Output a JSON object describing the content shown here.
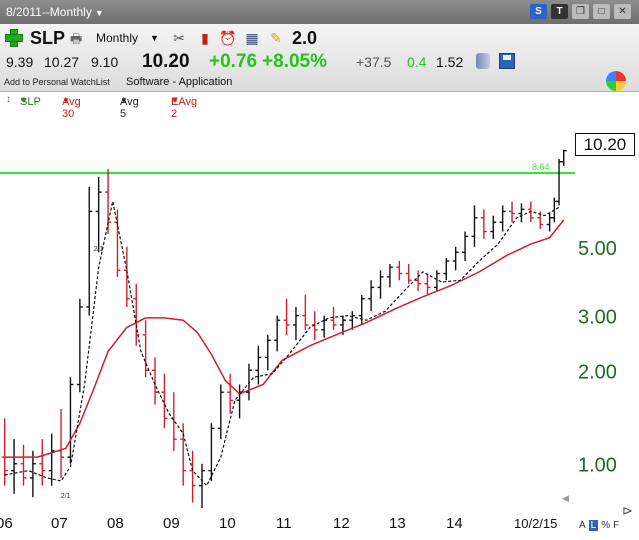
{
  "window": {
    "title": "8/2011--Monthly",
    "icons": [
      "stocktwits-icon",
      "twitter-icon",
      "restore-icon",
      "maximize-icon",
      "close-icon"
    ]
  },
  "toolbar": {
    "symbol": "SLP",
    "period": "Monthly",
    "version": "2.0",
    "icons": [
      "add-watchlist-icon",
      "print-icon",
      "tools-icon",
      "chart-icon",
      "alarm-icon",
      "calculator-icon",
      "note-icon"
    ]
  },
  "quote": {
    "open": "9.39",
    "high": "10.27",
    "low": "9.10",
    "last": "10.20",
    "change": "+0.76",
    "change_pct": "+8.05%",
    "rs": "+37.5",
    "volume_ratio": "0.4",
    "value": "1.52",
    "watchlist_link": "Add to Personal WatchList",
    "industry": "Software - Application"
  },
  "legend": {
    "symbol": "SLP",
    "avg30": "Avg 30",
    "avg5": "Avg 5",
    "eavg2": "EAvg 2"
  },
  "colors": {
    "up_bar": "#111111",
    "down_bar": "#d0202a",
    "avg30": "#d0202a",
    "avg5": "#111111",
    "level_line": "#2ee82e",
    "axis_text": "#1f6e1f",
    "change_green": "#27c21a"
  },
  "chart_data": {
    "type": "line",
    "scale": "log",
    "ylim": [
      0.72,
      14
    ],
    "y_ticks": [
      1.0,
      2.0,
      3.0,
      5.0
    ],
    "y_tick_labels": [
      "1.00",
      "2.00",
      "3.00",
      "5.00"
    ],
    "x_tick_labels": [
      "06",
      "07",
      "08",
      "09",
      "10",
      "11",
      "12",
      "13",
      "14",
      "10/2/15"
    ],
    "horizontal_line": {
      "value": 8.64,
      "label": "8.64"
    },
    "last_price_label": "10.20",
    "annotations": [
      {
        "text": "2/1",
        "x": "2006-12",
        "y": 0.8
      },
      {
        "text": "2/1",
        "x": "2007-07",
        "y": 5.0
      }
    ],
    "series": [
      {
        "name": "Avg 30",
        "x": [
          "2005-11",
          "2006-06",
          "2006-12",
          "2007-03",
          "2007-06",
          "2007-09",
          "2008-01",
          "2008-05",
          "2008-09",
          "2009-01",
          "2009-04",
          "2009-07",
          "2009-10",
          "2010-01",
          "2010-06",
          "2010-10",
          "2011-04",
          "2011-10",
          "2012-04",
          "2012-10",
          "2013-04",
          "2013-10",
          "2014-04",
          "2014-10",
          "2015-03",
          "2015-07",
          "2015-10"
        ],
        "values": [
          1.05,
          1.05,
          1.12,
          1.35,
          1.75,
          2.3,
          2.75,
          2.95,
          2.95,
          2.9,
          2.65,
          2.25,
          1.85,
          1.68,
          1.8,
          2.15,
          2.4,
          2.62,
          2.85,
          3.15,
          3.45,
          3.75,
          4.15,
          4.7,
          5.1,
          5.35,
          6.1
        ]
      },
      {
        "name": "Avg 5",
        "x": [
          "2005-11",
          "2006-04",
          "2006-08",
          "2006-11",
          "2007-01",
          "2007-04",
          "2007-07",
          "2007-10",
          "2008-01",
          "2008-04",
          "2008-07",
          "2008-10",
          "2009-01",
          "2009-03",
          "2009-06",
          "2009-09",
          "2009-12",
          "2010-04",
          "2010-08",
          "2010-12",
          "2011-04",
          "2011-08",
          "2011-12",
          "2012-04",
          "2012-08",
          "2012-12",
          "2013-04",
          "2013-08",
          "2013-12",
          "2014-04",
          "2014-08",
          "2014-12",
          "2015-03",
          "2015-06",
          "2015-09"
        ],
        "values": [
          0.92,
          0.95,
          0.9,
          0.88,
          0.98,
          1.8,
          4.3,
          7.0,
          4.2,
          2.3,
          1.8,
          1.45,
          1.25,
          0.95,
          0.85,
          1.05,
          1.6,
          1.9,
          1.95,
          2.3,
          2.75,
          2.95,
          3.0,
          2.9,
          3.1,
          3.6,
          4.15,
          3.85,
          3.9,
          4.5,
          5.1,
          6.2,
          6.5,
          6.3,
          6.7
        ]
      }
    ],
    "bars_ohlc": {
      "columns": [
        "date",
        "open",
        "high",
        "low",
        "close"
      ],
      "rows": [
        [
          "2005-11",
          1.05,
          1.4,
          0.85,
          0.95
        ],
        [
          "2006-01",
          0.95,
          1.2,
          0.8,
          1.0
        ],
        [
          "2006-03",
          1.0,
          1.15,
          0.85,
          0.9
        ],
        [
          "2006-05",
          0.9,
          1.1,
          0.78,
          1.0
        ],
        [
          "2006-07",
          1.0,
          1.2,
          0.85,
          0.95
        ],
        [
          "2006-09",
          0.95,
          1.25,
          0.85,
          1.1
        ],
        [
          "2006-11",
          1.1,
          1.5,
          0.9,
          1.05
        ],
        [
          "2007-01",
          1.05,
          1.9,
          1.0,
          1.8
        ],
        [
          "2007-03",
          1.8,
          3.4,
          1.7,
          3.2
        ],
        [
          "2007-05",
          3.2,
          7.8,
          3.0,
          6.5
        ],
        [
          "2007-07",
          6.5,
          8.4,
          4.8,
          7.5
        ],
        [
          "2007-09",
          7.5,
          8.9,
          5.5,
          6.0
        ],
        [
          "2007-11",
          6.0,
          6.6,
          4.0,
          4.2
        ],
        [
          "2008-01",
          4.2,
          5.0,
          3.2,
          3.4
        ],
        [
          "2008-03",
          3.4,
          3.8,
          2.4,
          2.6
        ],
        [
          "2008-05",
          2.6,
          2.9,
          1.9,
          2.0
        ],
        [
          "2008-07",
          2.0,
          2.2,
          1.55,
          1.7
        ],
        [
          "2008-09",
          1.7,
          1.95,
          1.3,
          1.4
        ],
        [
          "2008-11",
          1.4,
          1.7,
          1.1,
          1.2
        ],
        [
          "2009-01",
          1.2,
          1.35,
          0.85,
          0.95
        ],
        [
          "2009-03",
          0.95,
          1.1,
          0.75,
          0.85
        ],
        [
          "2009-05",
          0.85,
          1.0,
          0.72,
          0.95
        ],
        [
          "2009-07",
          0.95,
          1.35,
          0.88,
          1.3
        ],
        [
          "2009-09",
          1.3,
          1.8,
          1.2,
          1.7
        ],
        [
          "2009-11",
          1.7,
          1.95,
          1.45,
          1.6
        ],
        [
          "2010-01",
          1.6,
          1.8,
          1.4,
          1.7
        ],
        [
          "2010-03",
          1.7,
          2.1,
          1.6,
          2.0
        ],
        [
          "2010-05",
          2.0,
          2.4,
          1.8,
          2.2
        ],
        [
          "2010-07",
          2.2,
          2.6,
          2.0,
          2.5
        ],
        [
          "2010-09",
          2.5,
          3.0,
          2.3,
          2.9
        ],
        [
          "2010-11",
          2.9,
          3.4,
          2.6,
          2.8
        ],
        [
          "2011-01",
          2.8,
          3.2,
          2.5,
          3.0
        ],
        [
          "2011-03",
          3.0,
          3.5,
          2.7,
          2.8
        ],
        [
          "2011-05",
          2.8,
          3.1,
          2.5,
          2.7
        ],
        [
          "2011-07",
          2.7,
          3.0,
          2.55,
          2.9
        ],
        [
          "2011-09",
          2.9,
          3.2,
          2.7,
          2.8
        ],
        [
          "2011-11",
          2.8,
          3.0,
          2.6,
          2.9
        ],
        [
          "2012-01",
          2.9,
          3.1,
          2.7,
          3.0
        ],
        [
          "2012-03",
          3.0,
          3.5,
          2.8,
          3.4
        ],
        [
          "2012-05",
          3.4,
          3.9,
          3.1,
          3.7
        ],
        [
          "2012-07",
          3.7,
          4.2,
          3.4,
          4.0
        ],
        [
          "2012-09",
          4.0,
          4.4,
          3.7,
          4.3
        ],
        [
          "2012-11",
          4.3,
          4.5,
          3.9,
          4.1
        ],
        [
          "2013-01",
          4.1,
          4.4,
          3.8,
          3.9
        ],
        [
          "2013-03",
          3.9,
          4.2,
          3.6,
          3.8
        ],
        [
          "2013-05",
          3.8,
          4.1,
          3.5,
          3.7
        ],
        [
          "2013-07",
          3.7,
          4.2,
          3.6,
          4.1
        ],
        [
          "2013-09",
          4.1,
          4.6,
          3.9,
          4.5
        ],
        [
          "2013-11",
          4.5,
          5.0,
          4.2,
          4.8
        ],
        [
          "2014-01",
          4.8,
          5.6,
          4.5,
          5.4
        ],
        [
          "2014-03",
          5.4,
          6.8,
          5.0,
          6.2
        ],
        [
          "2014-05",
          6.2,
          6.6,
          5.3,
          5.6
        ],
        [
          "2014-07",
          5.6,
          6.3,
          5.3,
          6.0
        ],
        [
          "2014-09",
          6.0,
          6.8,
          5.6,
          6.5
        ],
        [
          "2014-11",
          6.5,
          7.0,
          6.0,
          6.4
        ],
        [
          "2015-01",
          6.4,
          6.9,
          6.0,
          6.6
        ],
        [
          "2015-03",
          6.6,
          7.0,
          6.0,
          6.2
        ],
        [
          "2015-05",
          6.2,
          6.5,
          5.7,
          5.9
        ],
        [
          "2015-07",
          5.9,
          6.4,
          5.6,
          6.2
        ],
        [
          "2015-08",
          6.2,
          7.2,
          6.0,
          7.0
        ],
        [
          "2015-09",
          7.0,
          9.6,
          6.8,
          9.4
        ],
        [
          "2015-10",
          9.39,
          10.27,
          9.1,
          10.2
        ]
      ]
    }
  },
  "bottom_tools": {
    "a": "A",
    "l": "L",
    "pct": "%",
    "f": "F"
  }
}
